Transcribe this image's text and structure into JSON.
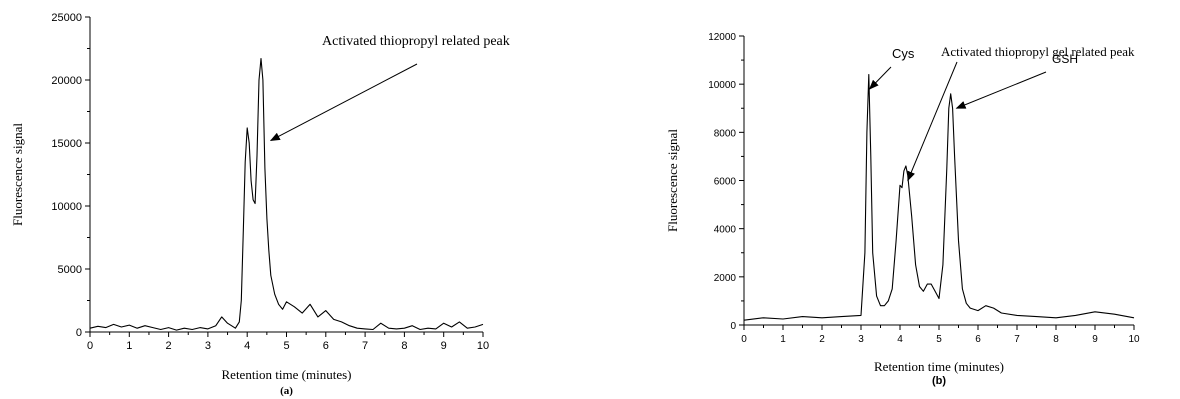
{
  "chart_data": [
    {
      "type": "line",
      "panel_label": "(a)",
      "xlabel": "Retention time (minutes)",
      "ylabel": "Fluorescence signal",
      "xlim": [
        0,
        10
      ],
      "ylim": [
        0,
        25000
      ],
      "xticks": [
        0,
        1,
        2,
        3,
        4,
        5,
        6,
        7,
        8,
        9,
        10
      ],
      "yticks": [
        0,
        5000,
        10000,
        15000,
        20000,
        25000
      ],
      "grid": false,
      "annotations": [
        {
          "text": "Activated thiopropyl related peak",
          "points_to": [
            4.6,
            15200
          ]
        }
      ],
      "series": [
        {
          "x": [
            0,
            0.2,
            0.4,
            0.6,
            0.8,
            1.0,
            1.2,
            1.4,
            1.6,
            1.8,
            2.0,
            2.2,
            2.4,
            2.6,
            2.8,
            3.0,
            3.2,
            3.35,
            3.5,
            3.6,
            3.7,
            3.8,
            3.85,
            3.9,
            3.95,
            4.0,
            4.05,
            4.1,
            4.15,
            4.2,
            4.25,
            4.3,
            4.35,
            4.4,
            4.45,
            4.5,
            4.55,
            4.6,
            4.7,
            4.8,
            4.9,
            5.0,
            5.2,
            5.4,
            5.6,
            5.8,
            6.0,
            6.2,
            6.4,
            6.6,
            6.8,
            7.0,
            7.2,
            7.4,
            7.6,
            7.8,
            8.0,
            8.2,
            8.4,
            8.6,
            8.8,
            9.0,
            9.2,
            9.4,
            9.6,
            9.8,
            10.0
          ],
          "y": [
            300,
            450,
            350,
            600,
            400,
            550,
            300,
            500,
            350,
            200,
            350,
            150,
            300,
            200,
            350,
            250,
            500,
            1200,
            700,
            500,
            300,
            800,
            2500,
            8000,
            13500,
            16200,
            15000,
            12000,
            10500,
            10200,
            14000,
            20000,
            21700,
            20000,
            13000,
            9000,
            6500,
            4500,
            3000,
            2200,
            1800,
            2400,
            2000,
            1500,
            2200,
            1200,
            1700,
            1000,
            800,
            500,
            300,
            250,
            200,
            700,
            300,
            250,
            300,
            500,
            200,
            300,
            250,
            700,
            400,
            800,
            300,
            400,
            600
          ]
        }
      ]
    },
    {
      "type": "line",
      "panel_label": "(b)",
      "xlabel": "Retention time (minutes)",
      "ylabel": "Fluorescence signal",
      "xlim": [
        0,
        10
      ],
      "ylim": [
        0,
        12000
      ],
      "xticks": [
        0,
        1,
        2,
        3,
        4,
        5,
        6,
        7,
        8,
        9,
        10
      ],
      "yticks": [
        0,
        2000,
        4000,
        6000,
        8000,
        10000,
        12000
      ],
      "grid": false,
      "annotations": [
        {
          "text": "Cys",
          "points_to": [
            3.22,
            9800
          ]
        },
        {
          "text": "Activated thiopropyl gel related peak",
          "points_to": [
            4.2,
            6000
          ]
        },
        {
          "text": "GSH",
          "points_to": [
            5.45,
            9000
          ]
        }
      ],
      "series": [
        {
          "x": [
            0,
            0.5,
            1.0,
            1.5,
            2.0,
            2.5,
            3.0,
            3.1,
            3.15,
            3.2,
            3.25,
            3.3,
            3.4,
            3.5,
            3.6,
            3.7,
            3.8,
            3.9,
            4.0,
            4.05,
            4.1,
            4.15,
            4.2,
            4.3,
            4.4,
            4.5,
            4.6,
            4.7,
            4.8,
            4.9,
            5.0,
            5.1,
            5.2,
            5.25,
            5.3,
            5.35,
            5.4,
            5.5,
            5.6,
            5.7,
            5.8,
            6.0,
            6.2,
            6.4,
            6.6,
            7.0,
            7.5,
            8.0,
            8.5,
            9.0,
            9.5,
            10.0
          ],
          "y": [
            200,
            300,
            250,
            350,
            300,
            350,
            400,
            3000,
            8000,
            10400,
            7000,
            3000,
            1200,
            800,
            800,
            1000,
            1500,
            3500,
            5800,
            5700,
            6400,
            6600,
            6200,
            4500,
            2500,
            1600,
            1400,
            1700,
            1700,
            1400,
            1100,
            2500,
            6500,
            9000,
            9600,
            9000,
            7000,
            3500,
            1500,
            900,
            700,
            600,
            800,
            700,
            500,
            400,
            350,
            300,
            400,
            550,
            450,
            300
          ]
        }
      ]
    }
  ]
}
